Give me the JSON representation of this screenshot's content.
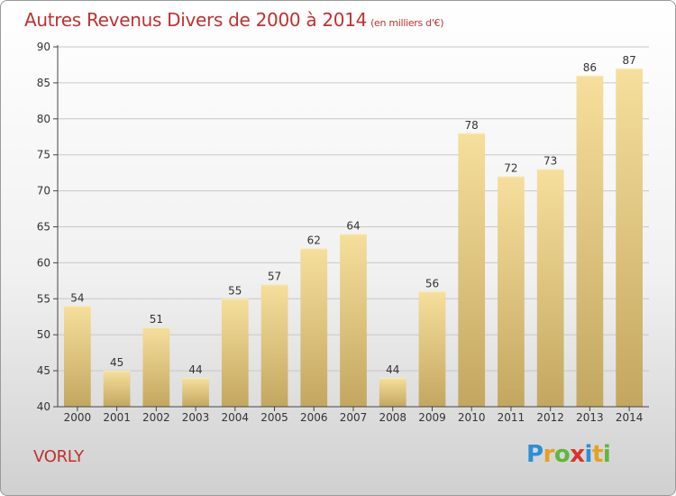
{
  "header": {
    "title": "Autres Revenus Divers de 2000 à 2014",
    "unit": "(en milliers d'€)"
  },
  "footer": {
    "commune": "VORLY",
    "logo_text": "Proxiti"
  },
  "colors": {
    "title": "#c03030",
    "bar_light": "#f4dc98",
    "bar_dark": "#c6ab62",
    "grid": "#c8c8c8",
    "axis": "#444444"
  },
  "chart_data": {
    "type": "bar",
    "title": "Autres Revenus Divers de 2000 à 2014",
    "subtitle": "(en milliers d'€)",
    "xlabel": "",
    "ylabel": "",
    "categories": [
      "2000",
      "2001",
      "2002",
      "2003",
      "2004",
      "2005",
      "2006",
      "2007",
      "2008",
      "2009",
      "2010",
      "2011",
      "2012",
      "2013",
      "2014"
    ],
    "values": [
      54,
      45,
      51,
      44,
      55,
      57,
      62,
      64,
      44,
      56,
      78,
      72,
      73,
      86,
      87
    ],
    "ylim": [
      40,
      90
    ],
    "yticks": [
      40,
      45,
      50,
      55,
      60,
      65,
      70,
      75,
      80,
      85,
      90
    ],
    "grid": true,
    "legend": "none"
  }
}
